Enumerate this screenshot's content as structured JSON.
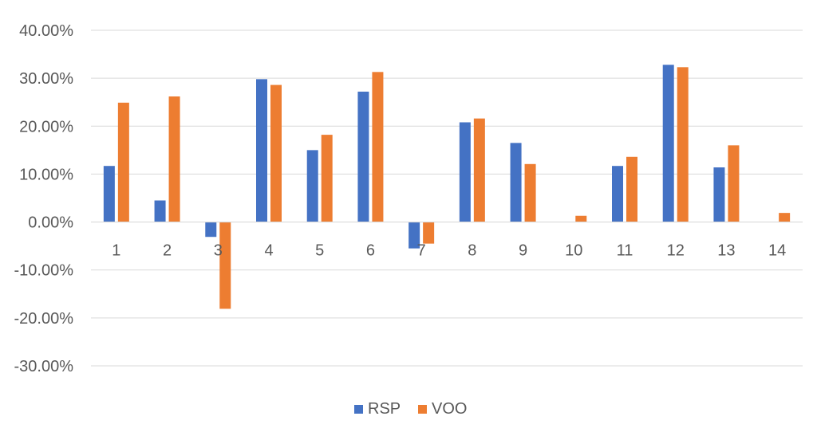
{
  "chart_data": {
    "type": "bar",
    "title": "",
    "xlabel": "",
    "ylabel": "",
    "categories": [
      "1",
      "2",
      "3",
      "4",
      "5",
      "6",
      "7",
      "8",
      "9",
      "10",
      "11",
      "12",
      "13",
      "14"
    ],
    "series": [
      {
        "name": "RSP",
        "color": "#4472C4",
        "values": [
          11.7,
          4.5,
          -3.1,
          29.8,
          15.0,
          27.2,
          -5.5,
          20.8,
          16.5,
          0.0,
          11.7,
          32.8,
          11.4,
          0.0
        ]
      },
      {
        "name": "VOO",
        "color": "#ED7D31",
        "values": [
          24.9,
          26.2,
          -18.1,
          28.6,
          18.2,
          31.3,
          -4.5,
          21.6,
          12.1,
          1.3,
          13.6,
          32.3,
          16.0,
          1.9
        ]
      }
    ],
    "ylim": [
      -30,
      40
    ],
    "yticks": [
      "40.00%",
      "30.00%",
      "20.00%",
      "10.00%",
      "0.00%",
      "-10.00%",
      "-20.00%",
      "-30.00%"
    ],
    "grid": true,
    "legend_position": "bottom"
  }
}
